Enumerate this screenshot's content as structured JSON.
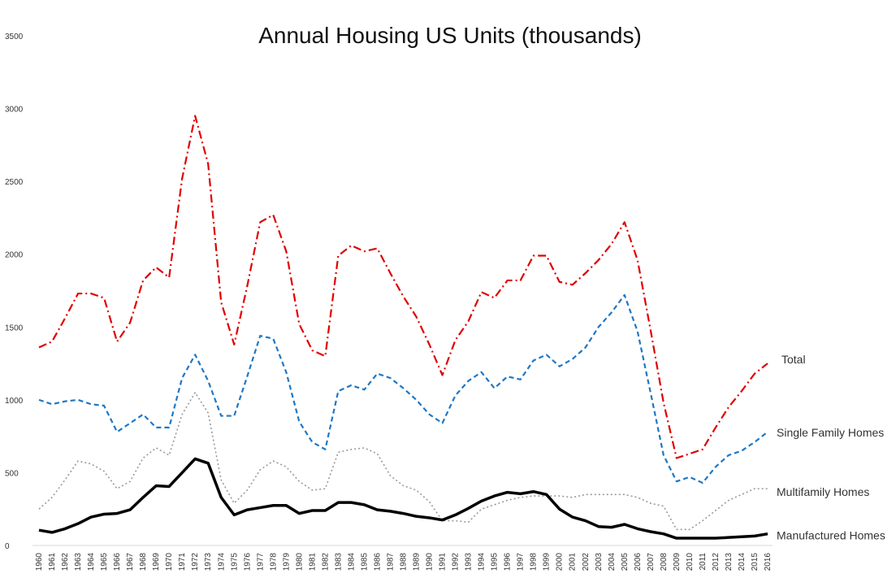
{
  "chart_data": {
    "type": "line",
    "title": "Annual Housing US Units (thousands)",
    "xlabel": "",
    "ylabel": "",
    "ylim": [
      0,
      3500
    ],
    "yticks": [
      0,
      500,
      1000,
      1500,
      2000,
      2500,
      3000,
      3500
    ],
    "x": [
      1960,
      1961,
      1962,
      1963,
      1964,
      1965,
      1966,
      1967,
      1968,
      1969,
      1970,
      1971,
      1972,
      1973,
      1974,
      1975,
      1976,
      1977,
      1978,
      1979,
      1980,
      1981,
      1982,
      1983,
      1984,
      1985,
      1986,
      1987,
      1988,
      1989,
      1990,
      1991,
      1992,
      1993,
      1994,
      1995,
      1996,
      1997,
      1998,
      1999,
      2000,
      2001,
      2002,
      2003,
      2004,
      2005,
      2006,
      2007,
      2008,
      2009,
      2010,
      2011,
      2012,
      2013,
      2014,
      2015,
      2016
    ],
    "grid": false,
    "legend": "none",
    "series": [
      {
        "name": "Total",
        "color": "#e00000",
        "style": "dash-dot",
        "values": [
          1360,
          1400,
          1560,
          1730,
          1730,
          1700,
          1400,
          1530,
          1820,
          1910,
          1840,
          2520,
          2950,
          2620,
          1670,
          1380,
          1780,
          2220,
          2270,
          2020,
          1520,
          1340,
          1300,
          1990,
          2060,
          2020,
          2040,
          1870,
          1710,
          1570,
          1380,
          1170,
          1410,
          1540,
          1740,
          1700,
          1820,
          1820,
          1990,
          1990,
          1810,
          1790,
          1870,
          1960,
          2070,
          2220,
          1960,
          1480,
          980,
          600,
          630,
          660,
          810,
          950,
          1060,
          1180,
          1250
        ]
      },
      {
        "name": "Single Family Homes",
        "color": "#1f77c4",
        "style": "dashed",
        "values": [
          1000,
          970,
          990,
          1000,
          970,
          960,
          780,
          840,
          900,
          810,
          810,
          1150,
          1310,
          1130,
          890,
          890,
          1160,
          1440,
          1420,
          1190,
          850,
          710,
          660,
          1060,
          1100,
          1070,
          1180,
          1150,
          1080,
          1000,
          900,
          840,
          1030,
          1130,
          1190,
          1080,
          1160,
          1140,
          1270,
          1310,
          1230,
          1280,
          1360,
          1500,
          1600,
          1720,
          1470,
          1050,
          620,
          440,
          470,
          430,
          540,
          620,
          650,
          710,
          780
        ]
      },
      {
        "name": "Multifamily Homes",
        "color": "#999999",
        "style": "dotted",
        "values": [
          250,
          330,
          450,
          580,
          560,
          510,
          390,
          440,
          600,
          670,
          620,
          900,
          1050,
          910,
          450,
          290,
          380,
          520,
          580,
          540,
          440,
          380,
          390,
          640,
          660,
          670,
          630,
          480,
          410,
          380,
          300,
          170,
          170,
          160,
          250,
          280,
          310,
          330,
          340,
          340,
          340,
          330,
          350,
          350,
          350,
          350,
          330,
          290,
          270,
          110,
          110,
          170,
          240,
          310,
          350,
          390,
          390
        ]
      },
      {
        "name": "Manufactured Homes",
        "color": "#000000",
        "style": "solid",
        "values": [
          105,
          90,
          115,
          150,
          195,
          215,
          220,
          245,
          330,
          410,
          405,
          500,
          595,
          565,
          330,
          210,
          245,
          260,
          275,
          275,
          220,
          240,
          240,
          295,
          295,
          280,
          245,
          235,
          220,
          200,
          190,
          175,
          210,
          255,
          305,
          340,
          365,
          355,
          370,
          350,
          250,
          195,
          170,
          130,
          125,
          145,
          115,
          95,
          80,
          50,
          50,
          50,
          50,
          55,
          60,
          65,
          80
        ]
      }
    ]
  }
}
